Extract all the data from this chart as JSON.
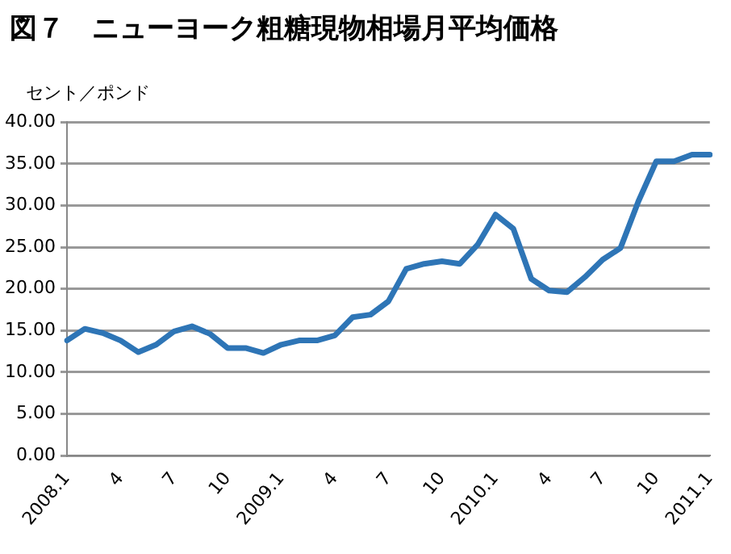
{
  "chart_data": {
    "type": "line",
    "title": "図７　ニューヨーク粗糖現物相場月平均価格",
    "ylabel": "セント／ポンド",
    "categories": [
      "2008.1",
      null,
      null,
      "4",
      null,
      null,
      "7",
      null,
      null,
      "10",
      null,
      null,
      "2009.1",
      null,
      null,
      "4",
      null,
      null,
      "7",
      null,
      null,
      "10",
      null,
      null,
      "2010.1",
      null,
      null,
      "4",
      null,
      null,
      "7",
      null,
      null,
      "10",
      null,
      null,
      "2011.1"
    ],
    "series": [
      {
        "color": "#2e75b6",
        "values": [
          13.8,
          15.2,
          14.7,
          13.8,
          12.4,
          13.3,
          14.9,
          15.5,
          14.6,
          12.9,
          12.9,
          12.3,
          13.3,
          13.8,
          13.8,
          14.4,
          16.6,
          16.9,
          18.5,
          22.4,
          23.0,
          23.3,
          23.0,
          25.3,
          28.9,
          27.2,
          21.2,
          19.8,
          19.6,
          21.4,
          23.5,
          24.9,
          30.5,
          35.3,
          35.3,
          36.1,
          36.1
        ]
      }
    ],
    "ylim": [
      0,
      40
    ],
    "yticks": [
      {
        "value": 0,
        "label": "0.00"
      },
      {
        "value": 5,
        "label": "5.00"
      },
      {
        "value": 10,
        "label": "10.00"
      },
      {
        "value": 15,
        "label": "15.00"
      },
      {
        "value": 20,
        "label": "20.00"
      },
      {
        "value": 25,
        "label": "25.00"
      },
      {
        "value": 30,
        "label": "30.00"
      },
      {
        "value": 35,
        "label": "35.00"
      },
      {
        "value": 40,
        "label": "40.00"
      }
    ],
    "grid": "y",
    "legend": false,
    "marker": "none",
    "line_style": "solid"
  }
}
